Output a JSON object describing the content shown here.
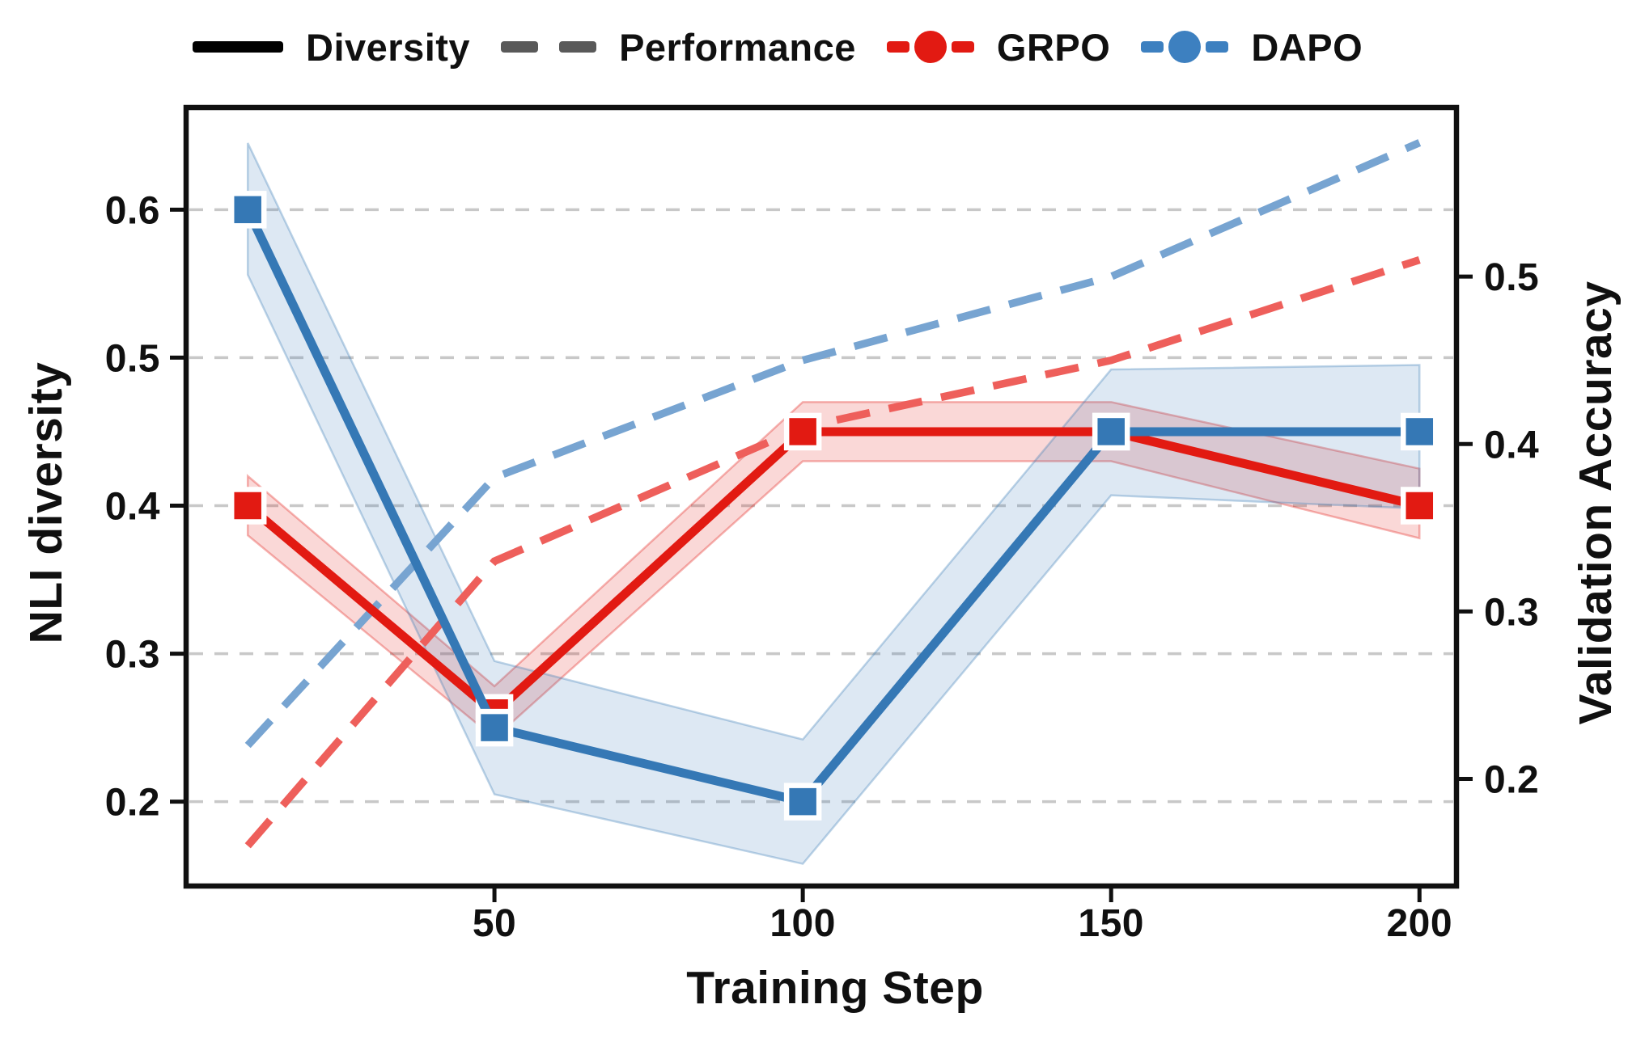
{
  "chart_data": {
    "type": "line",
    "title": "",
    "x": [
      10,
      50,
      100,
      150,
      200
    ],
    "x_axis": {
      "label": "Training Step",
      "ticks": [
        "50",
        "100",
        "150",
        "200"
      ],
      "tick_values": [
        50,
        100,
        150,
        200
      ],
      "range": [
        0,
        206
      ]
    },
    "left_axis": {
      "label": "NLI diversity",
      "ticks": [
        "0.2",
        "0.3",
        "0.4",
        "0.5",
        "0.6"
      ],
      "tick_values": [
        0.2,
        0.3,
        0.4,
        0.5,
        0.6
      ],
      "range": [
        0.143,
        0.669
      ]
    },
    "right_axis": {
      "label": "Validation Accuracy",
      "ticks": [
        "0.2",
        "0.3",
        "0.4",
        "0.5"
      ],
      "tick_values": [
        0.2,
        0.3,
        0.4,
        0.5
      ],
      "range": [
        0.136,
        0.601
      ]
    },
    "grid": {
      "show": true,
      "color": "#c8c8c8"
    },
    "colors": {
      "grpo_solid": "#e21a12",
      "dapo_solid": "#3578b5",
      "grpo_dashed": "#ee5f5b",
      "dapo_dashed": "#77a4d1",
      "legend_black": "#000000",
      "legend_gray": "#595959",
      "legend_red": "#e21a12",
      "legend_blue": "#3d80c0",
      "spine": "#101010"
    },
    "series": [
      {
        "name": "GRPO Diversity",
        "axis": "left",
        "line": "solid",
        "color": "#e21a12",
        "marker": "square",
        "values": [
          0.4,
          0.26,
          0.45,
          0.45,
          0.4
        ],
        "band_lo": [
          0.38,
          0.243,
          0.43,
          0.43,
          0.378
        ],
        "band_hi": [
          0.42,
          0.278,
          0.47,
          0.47,
          0.425
        ]
      },
      {
        "name": "DAPO Diversity",
        "axis": "left",
        "line": "solid",
        "color": "#3578b5",
        "marker": "square",
        "values": [
          0.6,
          0.25,
          0.2,
          0.45,
          0.45
        ],
        "band_lo": [
          0.556,
          0.205,
          0.158,
          0.407,
          0.398
        ],
        "band_hi": [
          0.645,
          0.295,
          0.242,
          0.492,
          0.495
        ]
      },
      {
        "name": "GRPO Performance",
        "axis": "right",
        "line": "dashed",
        "color": "#ee5f5b",
        "marker": "none",
        "values": [
          0.16,
          0.33,
          0.41,
          0.45,
          0.51
        ]
      },
      {
        "name": "DAPO Performance",
        "axis": "right",
        "line": "dashed",
        "color": "#77a4d1",
        "marker": "none",
        "values": [
          0.22,
          0.38,
          0.45,
          0.5,
          0.58
        ]
      }
    ],
    "legend": {
      "position": "top",
      "items": [
        {
          "label": "Diversity",
          "swatch": "solid",
          "color": "#000000"
        },
        {
          "label": "Performance",
          "swatch": "dashed",
          "color": "#595959"
        },
        {
          "label": "GRPO",
          "swatch": "dash-dot",
          "color": "#e21a12"
        },
        {
          "label": "DAPO",
          "swatch": "dash-dot",
          "color": "#3d80c0"
        }
      ]
    }
  }
}
